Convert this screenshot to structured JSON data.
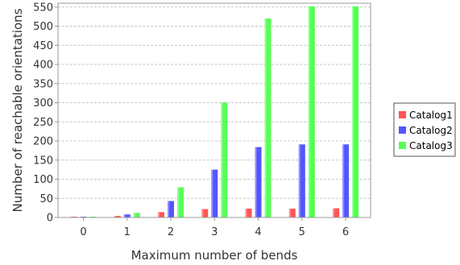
{
  "chart_data": {
    "type": "bar",
    "categories": [
      "0",
      "1",
      "2",
      "3",
      "4",
      "5",
      "6"
    ],
    "series": [
      {
        "name": "Catalog1",
        "color": "#ff5555",
        "values": [
          1,
          4,
          14,
          22,
          23,
          23,
          24
        ]
      },
      {
        "name": "Catalog2",
        "color": "#5555ff",
        "values": [
          1,
          8,
          43,
          125,
          184,
          191,
          191
        ]
      },
      {
        "name": "Catalog3",
        "color": "#55ff55",
        "values": [
          1,
          12,
          79,
          300,
          520,
          552,
          552
        ]
      }
    ],
    "xlabel": "Maximum number of bends",
    "ylabel": "Number of reachable orientations",
    "ylim": [
      0,
      560
    ],
    "yticks": [
      0,
      50,
      100,
      150,
      200,
      250,
      300,
      350,
      400,
      450,
      500,
      550
    ],
    "grid": true,
    "legend_position": "right"
  }
}
